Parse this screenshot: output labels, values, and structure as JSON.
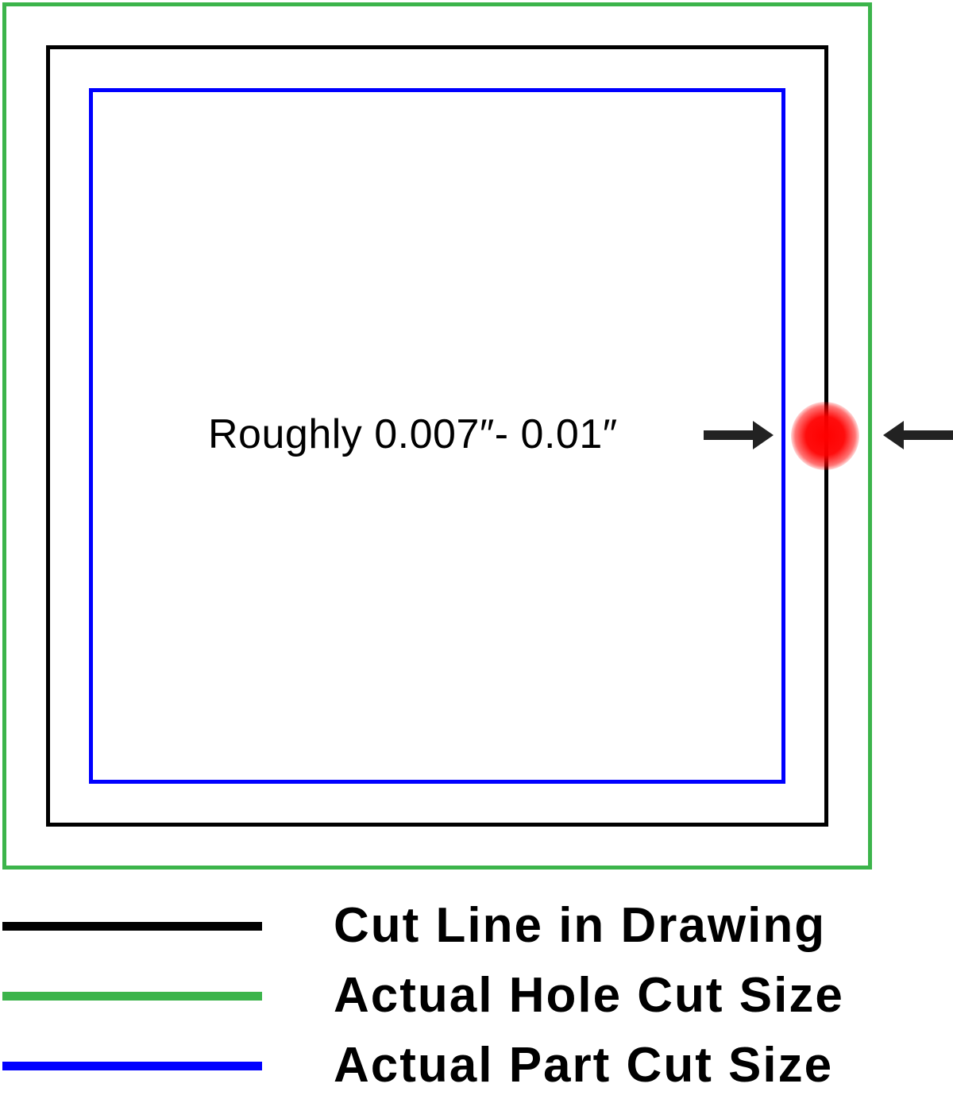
{
  "colors": {
    "cut_line": "#000000",
    "hole_cut": "#3cb44b",
    "part_cut": "#0000ff",
    "kerf_marker": "#ff0000",
    "arrow": "#222222"
  },
  "callout": {
    "text": "Roughly 0.007″- 0.01″"
  },
  "legend": {
    "items": [
      {
        "label": "Cut Line in Drawing",
        "color": "#000000"
      },
      {
        "label": "Actual Hole Cut Size",
        "color": "#3cb44b"
      },
      {
        "label": "Actual Part Cut Size",
        "color": "#0000ff"
      }
    ]
  }
}
